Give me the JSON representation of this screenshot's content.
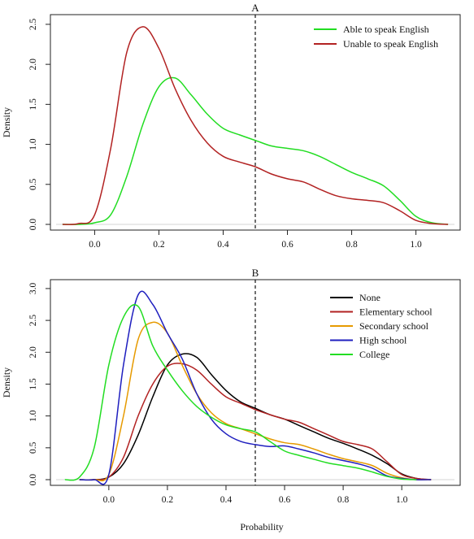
{
  "xlabel": "Probability",
  "chart_data": [
    {
      "type": "line",
      "title": "A",
      "xlabel": "",
      "ylabel": "Density",
      "xlim": [
        -0.12,
        1.12
      ],
      "ylim": [
        0,
        2.55
      ],
      "xticks": [
        "0.0",
        "0.2",
        "0.4",
        "0.6",
        "0.8",
        "1.0"
      ],
      "yticks": [
        "0.0",
        "0.5",
        "1.0",
        "1.5",
        "2.0",
        "2.5"
      ],
      "xtick_values": [
        0,
        0.2,
        0.4,
        0.6,
        0.8,
        1.0
      ],
      "ytick_values": [
        0,
        0.5,
        1.0,
        1.5,
        2.0,
        2.5
      ],
      "vline": 0.5,
      "legend_position": "top-right",
      "grid": false,
      "series": [
        {
          "name": "Able to speak English",
          "color": "#22dd22",
          "x": [
            -0.1,
            -0.05,
            0.0,
            0.05,
            0.1,
            0.15,
            0.2,
            0.25,
            0.3,
            0.35,
            0.4,
            0.45,
            0.5,
            0.55,
            0.6,
            0.65,
            0.7,
            0.75,
            0.8,
            0.85,
            0.9,
            0.95,
            1.0,
            1.05,
            1.1
          ],
          "values": [
            0.0,
            0.0,
            0.02,
            0.12,
            0.6,
            1.25,
            1.72,
            1.83,
            1.62,
            1.38,
            1.2,
            1.12,
            1.05,
            0.98,
            0.95,
            0.92,
            0.85,
            0.75,
            0.65,
            0.57,
            0.48,
            0.3,
            0.1,
            0.02,
            0.0
          ]
        },
        {
          "name": "Unable to speak English",
          "color": "#b22222",
          "x": [
            -0.1,
            -0.05,
            0.0,
            0.05,
            0.1,
            0.15,
            0.2,
            0.25,
            0.3,
            0.35,
            0.4,
            0.45,
            0.5,
            0.55,
            0.6,
            0.65,
            0.7,
            0.75,
            0.8,
            0.85,
            0.9,
            0.95,
            1.0,
            1.05,
            1.1
          ],
          "values": [
            0.0,
            0.01,
            0.12,
            0.95,
            2.15,
            2.47,
            2.2,
            1.7,
            1.3,
            1.02,
            0.85,
            0.78,
            0.72,
            0.63,
            0.57,
            0.53,
            0.44,
            0.36,
            0.32,
            0.3,
            0.27,
            0.17,
            0.05,
            0.01,
            0.0
          ]
        }
      ]
    },
    {
      "type": "line",
      "title": "B",
      "xlabel": "Probability",
      "ylabel": "Density",
      "xlim": [
        -0.18,
        1.18
      ],
      "ylim": [
        0,
        3.05
      ],
      "xticks": [
        "0.0",
        "0.2",
        "0.4",
        "0.6",
        "0.8",
        "1.0"
      ],
      "yticks": [
        "0.0",
        "0.5",
        "1.0",
        "1.5",
        "2.0",
        "2.5",
        "3.0"
      ],
      "xtick_values": [
        0,
        0.2,
        0.4,
        0.6,
        0.8,
        1.0
      ],
      "ytick_values": [
        0,
        0.5,
        1.0,
        1.5,
        2.0,
        2.5,
        3.0
      ],
      "vline": 0.5,
      "legend_position": "top-right",
      "grid": false,
      "series": [
        {
          "name": "None",
          "color": "#000000",
          "x": [
            -0.1,
            -0.05,
            0.0,
            0.05,
            0.1,
            0.15,
            0.2,
            0.25,
            0.3,
            0.35,
            0.4,
            0.45,
            0.5,
            0.55,
            0.6,
            0.65,
            0.7,
            0.75,
            0.8,
            0.85,
            0.9,
            0.95,
            1.0,
            1.05,
            1.1
          ],
          "values": [
            0.0,
            0.0,
            0.04,
            0.25,
            0.7,
            1.3,
            1.8,
            1.97,
            1.92,
            1.65,
            1.4,
            1.22,
            1.12,
            1.02,
            0.95,
            0.85,
            0.75,
            0.65,
            0.57,
            0.48,
            0.38,
            0.25,
            0.09,
            0.02,
            0.0
          ]
        },
        {
          "name": "Elementary school",
          "color": "#b22222",
          "x": [
            -0.1,
            -0.05,
            0.0,
            0.05,
            0.1,
            0.15,
            0.2,
            0.25,
            0.3,
            0.35,
            0.4,
            0.45,
            0.5,
            0.55,
            0.6,
            0.65,
            0.7,
            0.75,
            0.8,
            0.85,
            0.9,
            0.95,
            1.0,
            1.05,
            1.1
          ],
          "values": [
            0.0,
            0.0,
            0.04,
            0.35,
            1.0,
            1.5,
            1.78,
            1.82,
            1.72,
            1.5,
            1.3,
            1.2,
            1.1,
            1.02,
            0.95,
            0.9,
            0.8,
            0.7,
            0.6,
            0.55,
            0.48,
            0.28,
            0.08,
            0.02,
            0.0
          ]
        },
        {
          "name": "Secondary school",
          "color": "#e69a00",
          "x": [
            -0.1,
            -0.05,
            0.0,
            0.05,
            0.1,
            0.15,
            0.2,
            0.25,
            0.3,
            0.35,
            0.4,
            0.45,
            0.5,
            0.55,
            0.6,
            0.65,
            0.7,
            0.75,
            0.8,
            0.85,
            0.9,
            0.95,
            1.0,
            1.05,
            1.1
          ],
          "values": [
            0.0,
            0.0,
            0.08,
            1.0,
            2.2,
            2.47,
            2.3,
            1.8,
            1.35,
            1.05,
            0.88,
            0.8,
            0.72,
            0.64,
            0.58,
            0.55,
            0.48,
            0.4,
            0.33,
            0.28,
            0.22,
            0.1,
            0.03,
            0.0,
            0.0
          ]
        },
        {
          "name": "High school",
          "color": "#1f1fbf",
          "x": [
            -0.1,
            -0.05,
            0.0,
            0.05,
            0.1,
            0.15,
            0.2,
            0.25,
            0.3,
            0.35,
            0.4,
            0.45,
            0.5,
            0.55,
            0.6,
            0.65,
            0.7,
            0.75,
            0.8,
            0.85,
            0.9,
            0.95,
            1.0,
            1.05,
            1.1
          ],
          "values": [
            0.0,
            0.0,
            0.08,
            1.8,
            2.9,
            2.75,
            2.3,
            1.9,
            1.35,
            0.95,
            0.72,
            0.6,
            0.55,
            0.52,
            0.53,
            0.48,
            0.42,
            0.35,
            0.3,
            0.25,
            0.18,
            0.06,
            0.02,
            0.0,
            0.0
          ]
        },
        {
          "name": "College",
          "color": "#22dd22",
          "x": [
            -0.15,
            -0.1,
            -0.05,
            0.0,
            0.05,
            0.1,
            0.15,
            0.2,
            0.25,
            0.3,
            0.35,
            0.4,
            0.45,
            0.5,
            0.55,
            0.6,
            0.65,
            0.7,
            0.75,
            0.8,
            0.85,
            0.9,
            0.95,
            1.0,
            1.05
          ],
          "values": [
            0.0,
            0.04,
            0.5,
            1.8,
            2.55,
            2.72,
            2.1,
            1.72,
            1.4,
            1.15,
            0.98,
            0.86,
            0.8,
            0.75,
            0.6,
            0.45,
            0.38,
            0.32,
            0.26,
            0.22,
            0.18,
            0.12,
            0.05,
            0.01,
            0.0
          ]
        }
      ]
    }
  ]
}
